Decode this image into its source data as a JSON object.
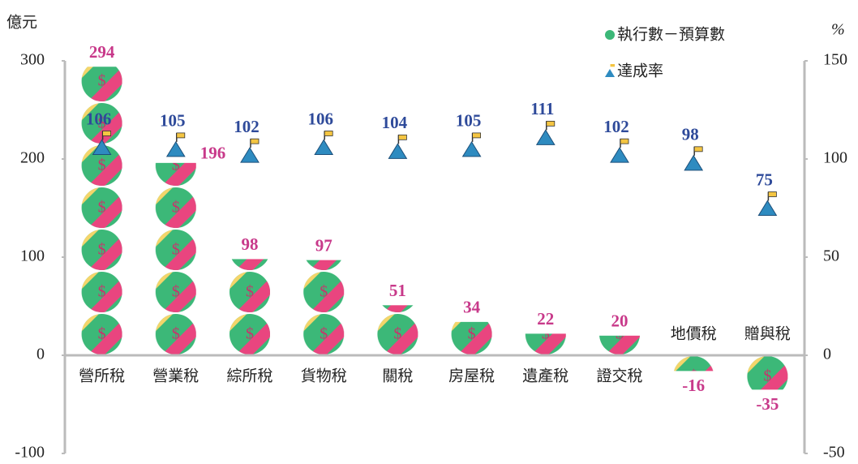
{
  "chart_data": {
    "type": "pictogram_bar",
    "ylabel": "億元",
    "y2label": "%",
    "categories": [
      "營所稅",
      "營業稅",
      "綜所稅",
      "貨物稅",
      "關稅",
      "房屋稅",
      "遺產稅",
      "證交稅",
      "地價稅",
      "贈與稅"
    ],
    "series": [
      {
        "name": "執行數－預算數",
        "color": "#3cb878",
        "values": [
          294,
          196,
          98,
          97,
          51,
          34,
          22,
          20,
          -16,
          -35
        ]
      },
      {
        "name": "達成率",
        "color": "#2e8bc0",
        "axis": "y2",
        "values": [
          106,
          105,
          102,
          106,
          104,
          105,
          111,
          102,
          98,
          75
        ]
      }
    ],
    "ylim": [
      -100,
      300
    ],
    "yticks": [
      -100,
      0,
      100,
      200,
      300
    ],
    "y2lim": [
      -50,
      150
    ],
    "y2ticks": [
      -50,
      0,
      50,
      100,
      150
    ]
  }
}
